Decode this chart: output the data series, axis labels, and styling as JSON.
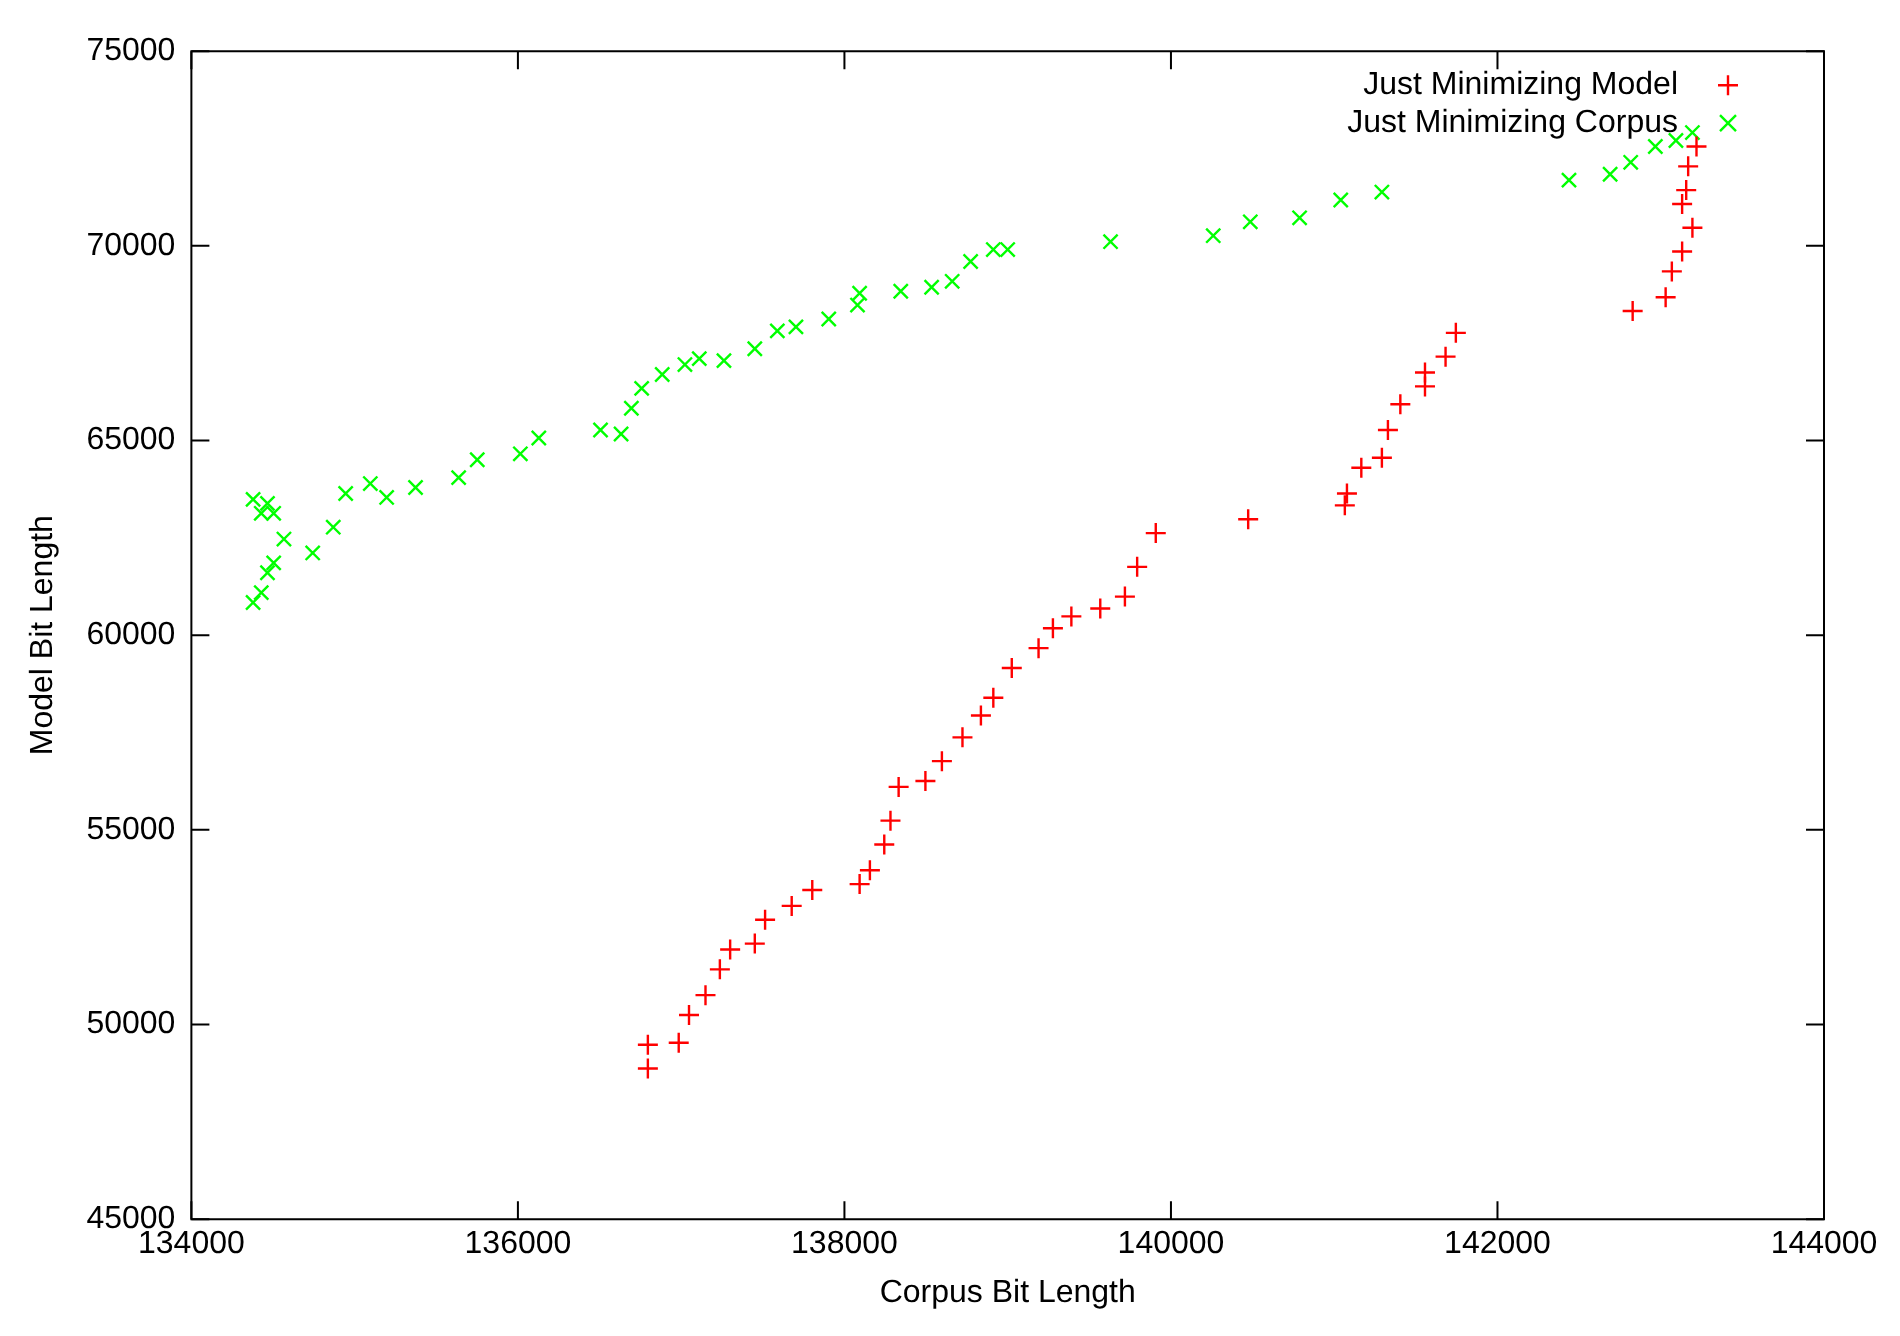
{
  "chart_data": {
    "type": "scatter",
    "xlabel": "Corpus Bit Length",
    "ylabel": "Model Bit Length",
    "xlim": [
      134000,
      144000
    ],
    "xticks": [
      134000,
      136000,
      138000,
      140000,
      142000,
      144000
    ],
    "ylim": [
      45000,
      75000
    ],
    "yticks": [
      45000,
      50000,
      55000,
      60000,
      65000,
      70000,
      75000
    ],
    "grid": false,
    "legend": "top right",
    "series": [
      {
        "name": "Just Minimizing Model",
        "color": "#ff0000",
        "marker": "plus",
        "x": [
          136796,
          136796,
          136985,
          137048,
          137149,
          137237,
          137300,
          137451,
          137514,
          137677,
          137803,
          138093,
          138156,
          138244,
          138282,
          138332,
          138496,
          138597,
          138723,
          138836,
          138912,
          139025,
          139189,
          139277,
          139390,
          139567,
          139718,
          139793,
          139907,
          140473,
          141065,
          141078,
          141166,
          141292,
          141329,
          141405,
          141556,
          141556,
          141682,
          141745,
          142828,
          143030,
          143068,
          143131,
          143194,
          143131,
          143156,
          143168,
          143219
        ],
        "values": [
          48871,
          49482,
          49533,
          50246,
          50755,
          51417,
          51926,
          52079,
          52690,
          53047,
          53454,
          53607,
          53964,
          54626,
          55237,
          56103,
          56256,
          56765,
          57376,
          57936,
          58395,
          59159,
          59668,
          60177,
          60483,
          60686,
          60992,
          61756,
          62622,
          62978,
          63335,
          63640,
          64302,
          64557,
          65270,
          65932,
          66391,
          66747,
          67155,
          67766,
          68326,
          68682,
          69344,
          69854,
          70465,
          71076,
          71432,
          72043,
          72553
        ]
      },
      {
        "name": "Just Minimizing Corpus",
        "color": "#00ff00",
        "marker": "cross",
        "x": [
          134378,
          134378,
          134428,
          134428,
          134466,
          134466,
          134504,
          134504,
          134567,
          134743,
          134869,
          134945,
          135096,
          135196,
          135373,
          135637,
          135751,
          136015,
          136128,
          136506,
          136632,
          136695,
          136758,
          136884,
          137023,
          137111,
          137262,
          137451,
          137589,
          137703,
          137904,
          138080,
          138093,
          138345,
          138534,
          138660,
          138773,
          138912,
          139000,
          139630,
          140259,
          140486,
          140788,
          141040,
          141292,
          142438,
          142690,
          142816,
          142967,
          143093,
          143194
        ],
        "values": [
          63488,
          60839,
          63131,
          61094,
          63386,
          61603,
          63131,
          61858,
          62469,
          62113,
          62774,
          63640,
          63895,
          63539,
          63793,
          64048,
          64506,
          64659,
          65066,
          65270,
          65168,
          65830,
          66340,
          66696,
          66951,
          67104,
          67053,
          67358,
          67817,
          67919,
          68122,
          68479,
          68784,
          68835,
          68937,
          69090,
          69599,
          69905,
          69905,
          70108,
          70261,
          70618,
          70720,
          71178,
          71382,
          71688,
          71840,
          72146,
          72553,
          72706,
          72910
        ]
      }
    ]
  }
}
